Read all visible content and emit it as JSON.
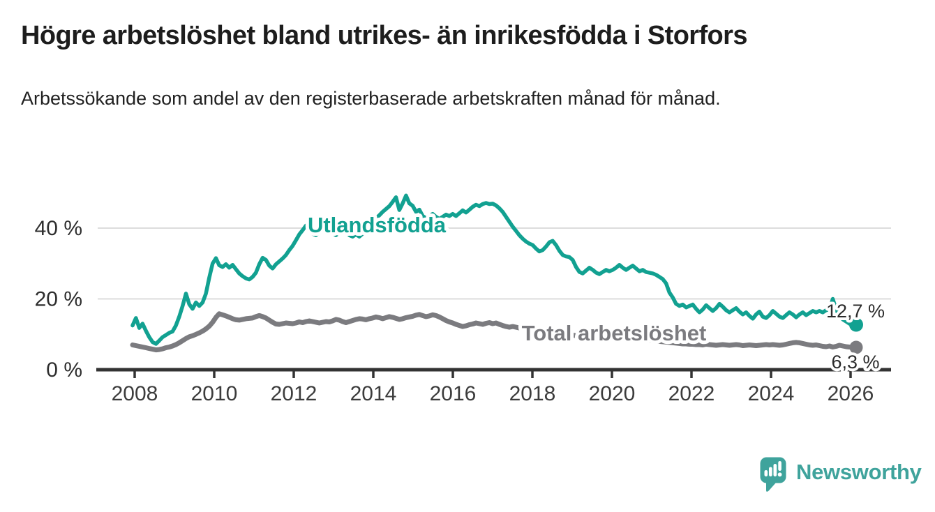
{
  "header": {
    "title": "Högre arbetslöshet bland utrikes- än inrikesfödda i Storfors",
    "subtitle": "Arbetssökande som andel av den registerbaserade arbetskraften månad för månad."
  },
  "chart_data": {
    "type": "line",
    "title": "Högre arbetslöshet bland utrikes- än inrikesfödda i Storfors",
    "ylabel": "Arbetssökande som andel av den registerbaserade arbetskraften (%)",
    "unit": "%",
    "frequency": "monthly",
    "x_start": "2008-01",
    "x_end": "2026-02",
    "ylim": [
      0,
      52
    ],
    "grid": true,
    "grid_values": [
      20,
      40
    ],
    "legend_position": "inline-labels",
    "y_ticks": [
      {
        "value": 0,
        "label": "0 %"
      },
      {
        "value": 20,
        "label": "20 %"
      },
      {
        "value": 40,
        "label": "40 %"
      }
    ],
    "x_ticks": [
      {
        "value": 2008,
        "label": "2008"
      },
      {
        "value": 2010,
        "label": "2010"
      },
      {
        "value": 2012,
        "label": "2012"
      },
      {
        "value": 2014,
        "label": "2014"
      },
      {
        "value": 2016,
        "label": "2016"
      },
      {
        "value": 2018,
        "label": "2018"
      },
      {
        "value": 2020,
        "label": "2020"
      },
      {
        "value": 2022,
        "label": "2022"
      },
      {
        "value": 2024,
        "label": "2024"
      },
      {
        "value": 2026,
        "label": "2026"
      }
    ],
    "series": [
      {
        "name": "Utlandsfödda",
        "color": "#12a191",
        "line_width": 5.5,
        "end_dot_radius": 10,
        "end_value": 12.7,
        "end_label": "12,7 %",
        "values": [
          12.5,
          14.6,
          11.8,
          13,
          11,
          9.2,
          7.8,
          7.3,
          8.2,
          9.2,
          9.8,
          10.4,
          10.8,
          12.5,
          15,
          18,
          21.5,
          18.5,
          17.2,
          19,
          18,
          19,
          21.5,
          26,
          30,
          31.5,
          29.5,
          29,
          29.8,
          28.8,
          29.6,
          28.4,
          27.2,
          26.4,
          25.8,
          25.5,
          26.2,
          27.4,
          29.8,
          31.6,
          31,
          29.4,
          28.6,
          29.8,
          30.6,
          31.4,
          32.4,
          33.8,
          35,
          36.6,
          38.2,
          39.4,
          40.7,
          39.2,
          38.4,
          38,
          38.8,
          39.6,
          40.2,
          39.4,
          38.6,
          38,
          38.8,
          39.6,
          38.8,
          38,
          37.6,
          38.2,
          37.6,
          38.4,
          39.4,
          40.6,
          41.8,
          42.8,
          43.6,
          44.6,
          45.4,
          46.2,
          47.4,
          48.7,
          45.1,
          47,
          49.2,
          47,
          46.3,
          44.6,
          45.2,
          43.4,
          42.8,
          43.4,
          44,
          43.2,
          42.6,
          43.2,
          43.8,
          43.4,
          44,
          43.4,
          44.2,
          45,
          44.4,
          45.2,
          46,
          46.6,
          46.2,
          46.8,
          47.1,
          46.8,
          46.9,
          46.4,
          45.6,
          44.6,
          43.2,
          41.8,
          40.4,
          39.2,
          38,
          37,
          36.2,
          35.6,
          35.2,
          34.2,
          33.4,
          33.8,
          34.8,
          36,
          36.4,
          35.2,
          33.6,
          32.4,
          32,
          31.8,
          31,
          29,
          27.6,
          27.2,
          28,
          28.8,
          28.2,
          27.4,
          27,
          27.6,
          28.2,
          27.8,
          28.2,
          28.8,
          29.6,
          28.8,
          28.2,
          28.8,
          29.4,
          28.6,
          27.8,
          28.2,
          27.6,
          27.4,
          27.2,
          26.8,
          26.2,
          25.6,
          24.4,
          21.8,
          20.4,
          18.6,
          18,
          18.4,
          17.6,
          18,
          18.4,
          17.2,
          16.2,
          17,
          18.2,
          17.4,
          16.6,
          17.4,
          18.6,
          17.8,
          16.8,
          16.2,
          16.8,
          17.4,
          16.4,
          15.6,
          16.2,
          15.2,
          14.4,
          15.6,
          16.4,
          15,
          14.6,
          15.4,
          16.6,
          15.8,
          15,
          14.6,
          15.4,
          16.2,
          15.6,
          14.8,
          15.6,
          16.2,
          15.4,
          16,
          16.6,
          16.2,
          16.6,
          16.2,
          16.8,
          17,
          20,
          17,
          15.2,
          14.2,
          13.6,
          13,
          12.8,
          12.7
        ]
      },
      {
        "name": "Total arbetslöshet",
        "color": "#7b7b7f",
        "line_width": 7,
        "end_dot_radius": 9.5,
        "end_value": 6.3,
        "end_label": "6,3 %",
        "values": [
          7,
          6.8,
          6.6,
          6.4,
          6.2,
          6,
          5.8,
          5.6,
          5.7,
          5.9,
          6.2,
          6.4,
          6.7,
          7.1,
          7.6,
          8.2,
          8.8,
          9.3,
          9.6,
          10,
          10.4,
          10.9,
          11.5,
          12.3,
          13.4,
          14.8,
          15.8,
          15.5,
          15.2,
          14.8,
          14.4,
          14.1,
          14,
          14.2,
          14.4,
          14.5,
          14.6,
          15,
          15.3,
          15,
          14.6,
          14,
          13.4,
          12.9,
          12.8,
          13,
          13.2,
          13.1,
          13,
          13.2,
          13.5,
          13.3,
          13.6,
          13.8,
          13.6,
          13.4,
          13.2,
          13.4,
          13.6,
          13.5,
          13.8,
          14.2,
          14,
          13.6,
          13.3,
          13.6,
          13.9,
          14.2,
          14.4,
          14.3,
          14.1,
          14.4,
          14.6,
          14.9,
          14.7,
          14.4,
          14.7,
          15,
          14.8,
          14.5,
          14.2,
          14.4,
          14.7,
          14.9,
          15.1,
          15.4,
          15.6,
          15.3,
          15,
          15.2,
          15.5,
          15.3,
          14.9,
          14.4,
          13.9,
          13.5,
          13.2,
          12.8,
          12.5,
          12.2,
          12.4,
          12.7,
          12.9,
          13.2,
          13,
          12.8,
          13.1,
          13.3,
          13,
          13.2,
          12.8,
          12.5,
          12.2,
          12,
          12.2,
          12,
          11.8,
          11.9,
          11.7,
          11.5,
          11.4,
          11.2,
          11.1,
          11,
          10.9,
          11,
          10.8,
          10.6,
          10.4,
          10.2,
          10,
          9.9,
          9.8,
          9.6,
          9.4,
          9.3,
          9.2,
          9.3,
          9.2,
          9,
          8.9,
          8.8,
          8.7,
          8.8,
          8.9,
          9.1,
          9.3,
          9.2,
          9,
          8.9,
          8.8,
          8.7,
          8.6,
          8.5,
          8.4,
          8.3,
          8.2,
          8.1,
          8,
          7.9,
          7.8,
          7.7,
          7.6,
          7.5,
          7.4,
          7.3,
          7.3,
          7.2,
          7.2,
          7.1,
          7.1,
          7,
          7.2,
          7.1,
          7,
          6.9,
          7,
          7.1,
          7,
          6.9,
          7,
          7.1,
          7,
          6.8,
          6.9,
          7,
          6.9,
          6.8,
          6.9,
          7,
          7.1,
          7,
          7.1,
          7,
          6.9,
          7,
          7.2,
          7.4,
          7.6,
          7.7,
          7.6,
          7.4,
          7.2,
          7,
          6.9,
          7,
          6.8,
          6.6,
          6.5,
          6.7,
          6.4,
          6.6,
          6.9,
          6.7,
          6.5,
          6.4,
          6.3,
          6.3
        ]
      }
    ],
    "series_label_annotations": [
      {
        "text": "Utlandsfödda",
        "color": "#12a191",
        "x": 540,
        "y": 83
      },
      {
        "text": "Total arbetslöshet",
        "color": "#7b7b7f",
        "x": 880,
        "y": 238
      }
    ],
    "end_label_annotations": [
      {
        "text": "12,7 %",
        "x": 1226,
        "y": 205
      },
      {
        "text": "6,3 %",
        "x": 1226,
        "y": 278
      }
    ]
  },
  "footer": {
    "brand": "Newsworthy"
  },
  "colors": {
    "accent_teal": "#12a191",
    "line_gray": "#7b7b7f",
    "grid": "#dcdcdc",
    "axis": "#333333",
    "tick_text": "#3c3c3c",
    "logo_teal": "#3fa39c",
    "title_text": "#1d1d1d"
  }
}
